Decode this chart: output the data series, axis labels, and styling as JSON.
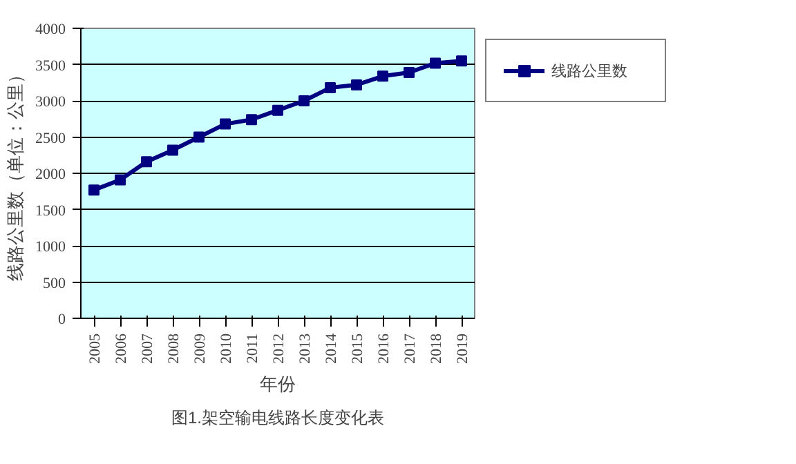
{
  "chart_data": {
    "type": "line",
    "title": "图1.架空输电线路长度变化表",
    "xlabel": "年份",
    "ylabel": "线路公里数（单位：公里）",
    "categories": [
      "2005",
      "2006",
      "2007",
      "2008",
      "2009",
      "2010",
      "2011",
      "2012",
      "2013",
      "2014",
      "2015",
      "2016",
      "2017",
      "2018",
      "2019"
    ],
    "series": [
      {
        "name": "线路公里数",
        "color": "#000080",
        "values": [
          1770,
          1910,
          2160,
          2320,
          2500,
          2680,
          2740,
          2870,
          3000,
          3180,
          3220,
          3340,
          3390,
          3520,
          3550
        ]
      }
    ],
    "ylim": [
      0,
      4000
    ],
    "yticks": [
      0,
      500,
      1000,
      1500,
      2000,
      2500,
      3000,
      3500,
      4000
    ],
    "grid": "y",
    "legend": "right",
    "marker": "square",
    "line_style": "solid"
  }
}
